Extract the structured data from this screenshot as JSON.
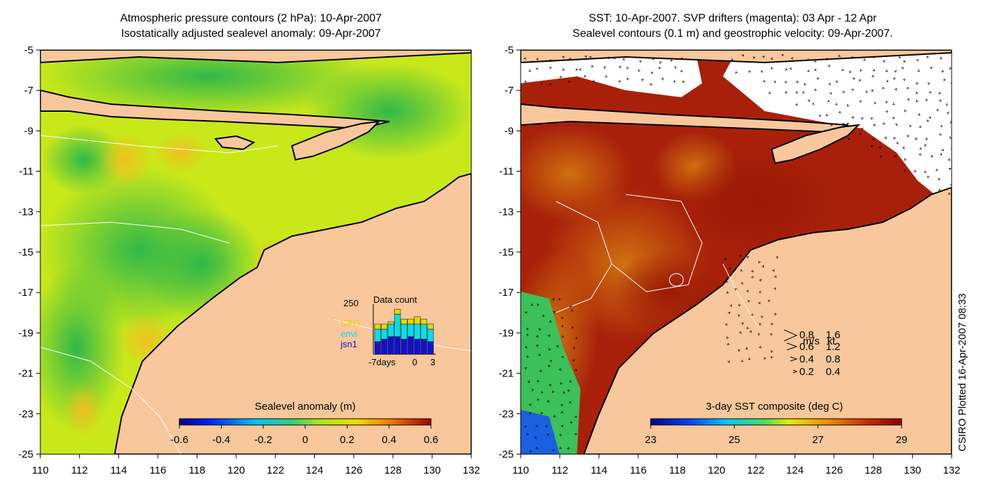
{
  "left_panel": {
    "title_line1": "Atmospheric pressure contours (2 hPa): 10-Apr-2007",
    "title_line2": "Isostatically adjusted sealevel anomaly: 09-Apr-2007",
    "colorbar_label": "Sealevel anomaly (m)",
    "colorbar_ticks": [
      "-0.6",
      "-0.4",
      "-0.2",
      "0",
      "0.2",
      "0.4",
      "0.6"
    ],
    "inset": {
      "title": "Data count",
      "y_max_label": "250",
      "legend": [
        {
          "name": "GFO",
          "color": "#e8d800"
        },
        {
          "name": "envi",
          "color": "#00e0f0"
        },
        {
          "name": "jsn1",
          "color": "#1010d0"
        }
      ],
      "x_labels": [
        "-7days",
        "0",
        "3"
      ],
      "bars": [
        {
          "jsn1": 0.25,
          "envi": 0.25,
          "gfo": 0.1
        },
        {
          "jsn1": 0.3,
          "envi": 0.2,
          "gfo": 0.1
        },
        {
          "jsn1": 0.35,
          "envi": 0.25,
          "gfo": 0.05
        },
        {
          "jsn1": 0.35,
          "envi": 0.45,
          "gfo": 0.1
        },
        {
          "jsn1": 0.3,
          "envi": 0.3,
          "gfo": 0.1
        },
        {
          "jsn1": 0.35,
          "envi": 0.25,
          "gfo": 0.1
        },
        {
          "jsn1": 0.3,
          "envi": 0.3,
          "gfo": 0.15
        },
        {
          "jsn1": 0.3,
          "envi": 0.3,
          "gfo": 0.1
        },
        {
          "jsn1": 0.25,
          "envi": 0.25,
          "gfo": 0.1
        }
      ]
    }
  },
  "right_panel": {
    "title_line1": "SST: 10-Apr-2007. SVP drifters (magenta): 03 Apr - 12 Apr",
    "title_line2": "Sealevel contours (0.1 m) and geostrophic velocity: 09-Apr-2007.",
    "colorbar_label": "3-day SST composite (deg C)",
    "colorbar_ticks": [
      "23",
      "25",
      "27",
      "29"
    ],
    "speed_key": {
      "header": [
        "m/s",
        "kt"
      ],
      "rows": [
        [
          "0.8",
          "1.6"
        ],
        [
          "0.6",
          "1.2"
        ],
        [
          "0.4",
          "0.8"
        ],
        [
          "0.2",
          "0.4"
        ]
      ]
    }
  },
  "axes": {
    "x_ticks": [
      "110",
      "112",
      "114",
      "116",
      "118",
      "120",
      "122",
      "124",
      "126",
      "128",
      "130",
      "132"
    ],
    "y_ticks": [
      "-5",
      "-7",
      "-9",
      "-11",
      "-13",
      "-15",
      "-17",
      "-19",
      "-21",
      "-23",
      "-25"
    ]
  },
  "credit": "CSIRO Plotted 16-Apr-2007 08:33",
  "colors": {
    "land": "#f8c79b",
    "sea_green": "#4fd24a",
    "sea_yellow": "#d9ee18",
    "sst_red": "#b01f05",
    "sst_orange": "#c8520a"
  }
}
